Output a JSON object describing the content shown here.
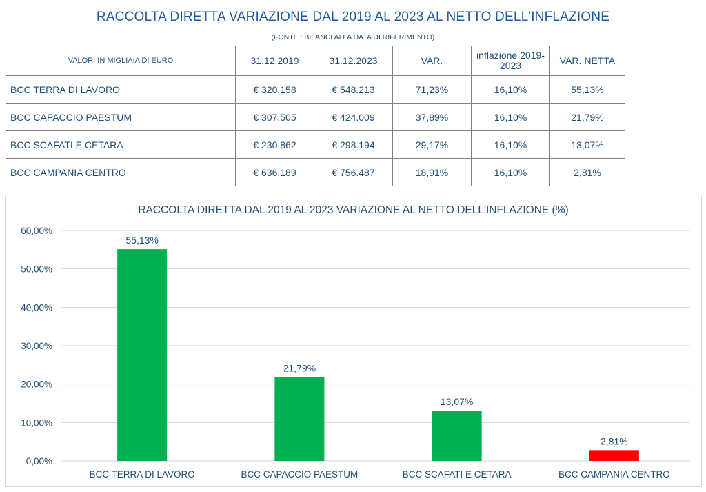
{
  "header": {
    "title": "RACCOLTA DIRETTA VARIAZIONE DAL 2019 AL 2023 AL NETTO DELL'INFLAZIONE",
    "source": "(FONTE : BILANCI ALLA DATA DI RIFERIMENTO)"
  },
  "table": {
    "headers": [
      "VALORI IN MIGLIAIA DI EURO",
      "31.12.2019",
      "31.12.2023",
      "VAR.",
      "inflazione 2019-2023",
      "VAR. NETTA"
    ],
    "inflation_header_lines": [
      "inflazione 2019-",
      "2023"
    ],
    "rows": [
      [
        "BCC TERRA DI LAVORO",
        "€ 320.158",
        "€ 548.213",
        "71,23%",
        "16,10%",
        "55,13%"
      ],
      [
        "BCC CAPACCIO PAESTUM",
        "€ 307.505",
        "€ 424.009",
        "37,89%",
        "16,10%",
        "21,79%"
      ],
      [
        "BCC SCAFATI E CETARA",
        "€ 230.862",
        "€ 298.194",
        "29,17%",
        "16,10%",
        "13,07%"
      ],
      [
        "BCC CAMPANIA CENTRO",
        "€ 636.189",
        "€ 756.487",
        "18,91%",
        "16,10%",
        "2,81%"
      ]
    ]
  },
  "chart_data": {
    "type": "bar",
    "title": "RACCOLTA DIRETTA DAL 2019 AL 2023 VARIAZIONE AL NETTO DELL'INFLAZIONE (%)",
    "categories": [
      "BCC TERRA DI LAVORO",
      "BCC CAPACCIO PAESTUM",
      "BCC SCAFATI E CETARA",
      "BCC CAMPANIA CENTRO"
    ],
    "values": [
      55.13,
      21.79,
      13.07,
      2.81
    ],
    "data_labels": [
      "55,13%",
      "21,79%",
      "13,07%",
      "2,81%"
    ],
    "bar_colors": [
      "#00b050",
      "#00b050",
      "#00b050",
      "#ff0000"
    ],
    "ylim": [
      0,
      60
    ],
    "yticks": [
      0,
      10,
      20,
      30,
      40,
      50,
      60
    ],
    "ytick_labels": [
      "0,00%",
      "10,00%",
      "20,00%",
      "30,00%",
      "40,00%",
      "50,00%",
      "60,00%"
    ],
    "grid": true,
    "xlabel": "",
    "ylabel": ""
  }
}
